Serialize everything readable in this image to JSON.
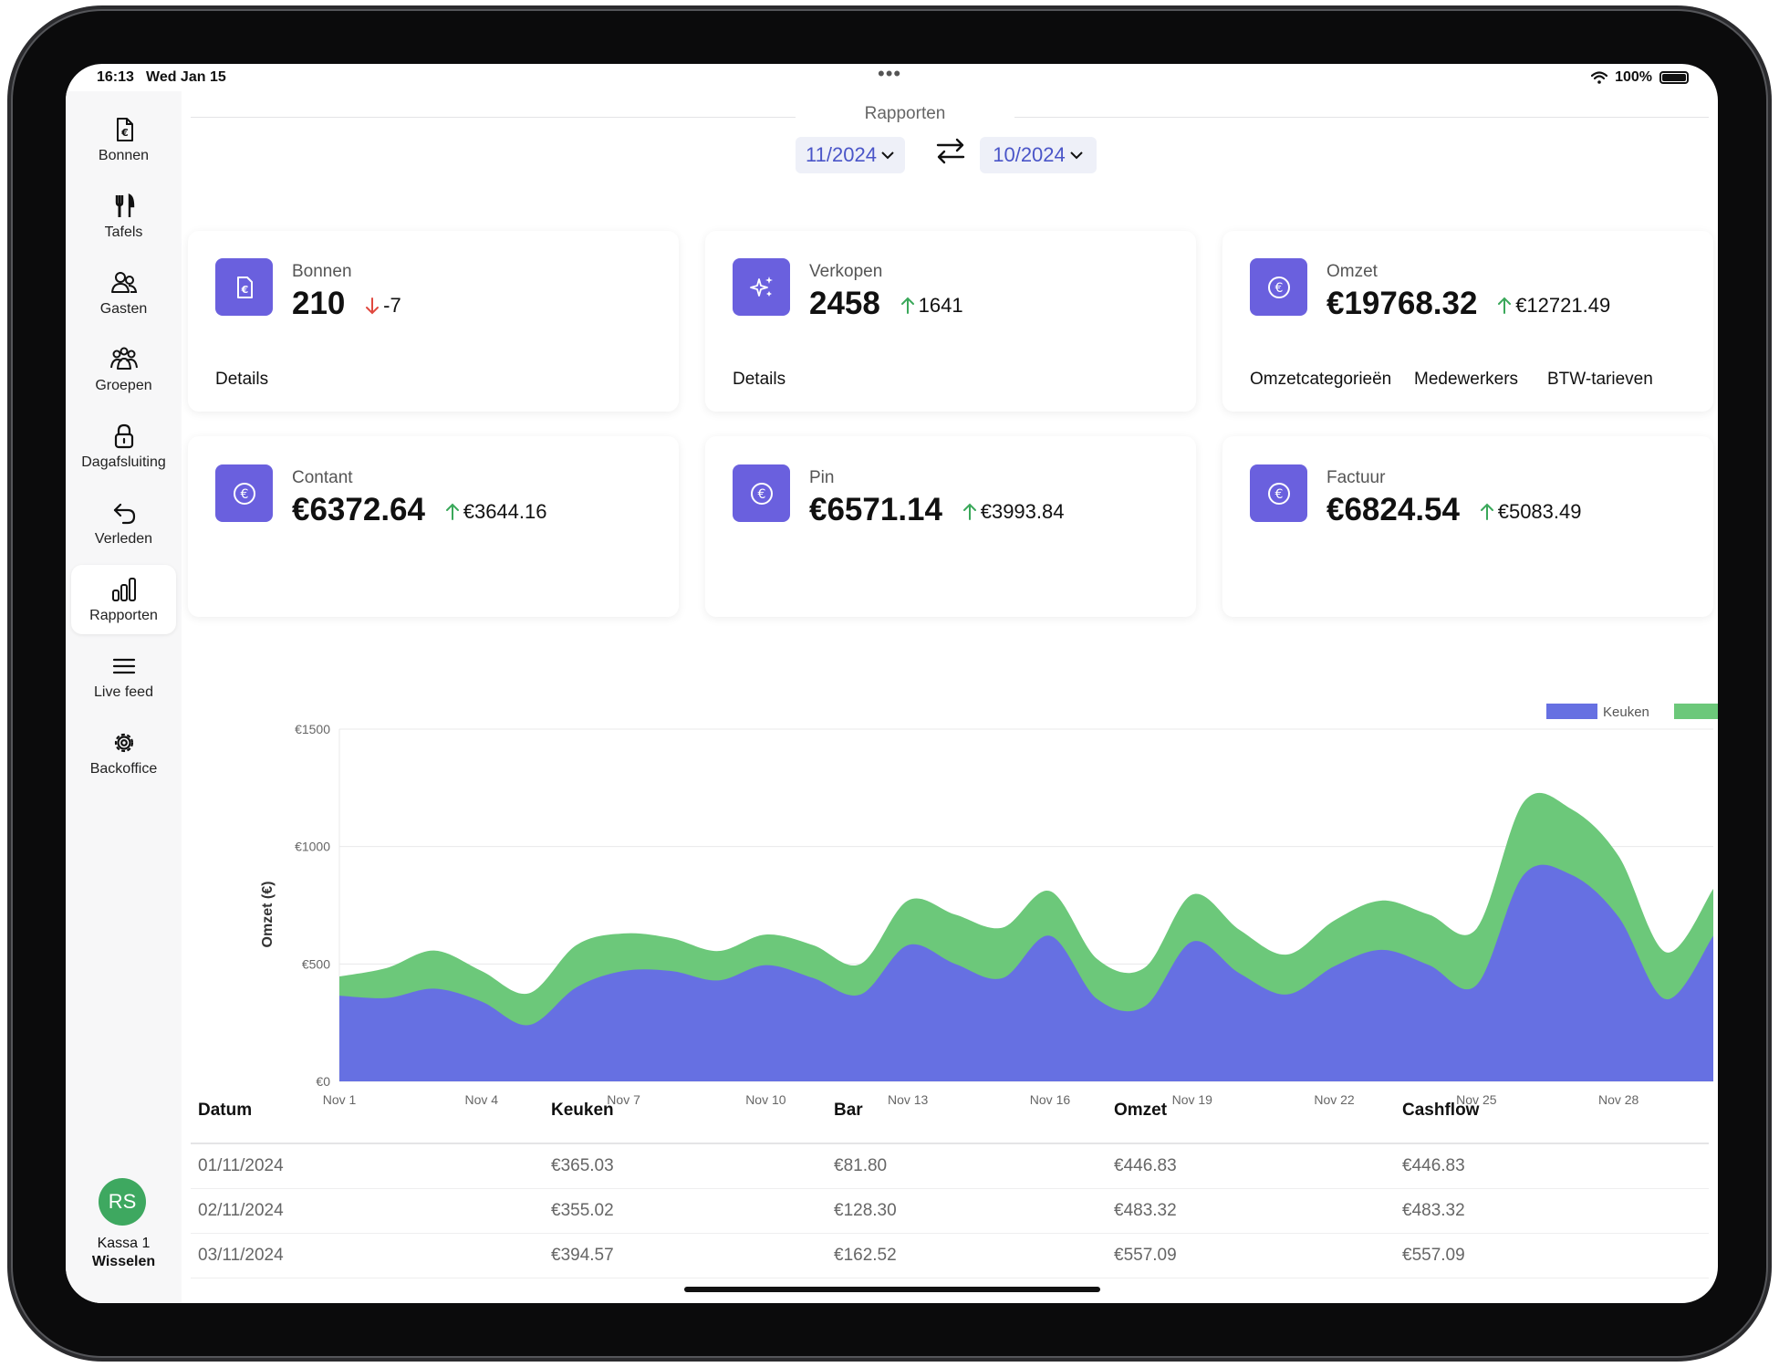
{
  "status_bar": {
    "time": "16:13",
    "date": "Wed Jan 15",
    "battery": "100%"
  },
  "sidebar": {
    "items": [
      {
        "label": "Bonnen",
        "icon": "receipt-euro-icon"
      },
      {
        "label": "Tafels",
        "icon": "fork-knife-icon"
      },
      {
        "label": "Gasten",
        "icon": "two-users-icon"
      },
      {
        "label": "Groepen",
        "icon": "group-users-icon"
      },
      {
        "label": "Dagafsluiting",
        "icon": "lock-icon"
      },
      {
        "label": "Verleden",
        "icon": "undo-arrow-icon"
      },
      {
        "label": "Rapporten",
        "icon": "bar-chart-icon",
        "active": true
      },
      {
        "label": "Live feed",
        "icon": "menu-lines-icon"
      },
      {
        "label": "Backoffice",
        "icon": "gear-icon"
      }
    ],
    "user": {
      "initials": "RS",
      "register": "Kassa 1",
      "switch_label": "Wisselen"
    }
  },
  "header": {
    "title": "Rapporten",
    "period_current": "11/2024",
    "period_compare": "10/2024"
  },
  "cards": {
    "bonnen": {
      "label": "Bonnen",
      "value": "210",
      "delta": "-7",
      "direction": "down",
      "link": "Details",
      "icon": "receipt-euro-icon"
    },
    "verkopen": {
      "label": "Verkopen",
      "value": "2458",
      "delta": "1641",
      "direction": "up",
      "link": "Details",
      "icon": "sparkles-icon"
    },
    "omzet": {
      "label": "Omzet",
      "value": "€19768.32",
      "delta": "€12721.49",
      "direction": "up",
      "links": [
        "Omzetcategorieën",
        "Medewerkers",
        "BTW-tarieven"
      ],
      "icon": "euro-coin-icon"
    },
    "contant": {
      "label": "Contant",
      "value": "€6372.64",
      "delta": "€3644.16",
      "direction": "up",
      "icon": "euro-coin-icon"
    },
    "pin": {
      "label": "Pin",
      "value": "€6571.14",
      "delta": "€3993.84",
      "direction": "up",
      "icon": "euro-coin-icon"
    },
    "factuur": {
      "label": "Factuur",
      "value": "€6824.54",
      "delta": "€5083.49",
      "direction": "up",
      "icon": "euro-coin-icon"
    }
  },
  "colors": {
    "accent": "#6a60de",
    "keuken": "#6670e2",
    "bar": "#6cc87a",
    "up": "#3aa85a",
    "down": "#e0483f"
  },
  "chart_data": {
    "type": "area",
    "stacked": true,
    "ylabel": "Omzet (€)",
    "y_ticks": [
      "€0",
      "€500",
      "€1000",
      "€1500"
    ],
    "ylim": [
      0,
      1500
    ],
    "x_ticks": [
      "Nov 1",
      "Nov 4",
      "Nov 7",
      "Nov 10",
      "Nov 13",
      "Nov 16",
      "Nov 19",
      "Nov 22",
      "Nov 25",
      "Nov 28"
    ],
    "legend_position": "top-right",
    "x": [
      "Nov 1",
      "Nov 2",
      "Nov 3",
      "Nov 4",
      "Nov 5",
      "Nov 6",
      "Nov 7",
      "Nov 8",
      "Nov 9",
      "Nov 10",
      "Nov 11",
      "Nov 12",
      "Nov 13",
      "Nov 14",
      "Nov 15",
      "Nov 16",
      "Nov 17",
      "Nov 18",
      "Nov 19",
      "Nov 20",
      "Nov 21",
      "Nov 22",
      "Nov 23",
      "Nov 24",
      "Nov 25",
      "Nov 26",
      "Nov 27",
      "Nov 28",
      "Nov 29",
      "Nov 30"
    ],
    "series": [
      {
        "name": "Keuken",
        "values": [
          365,
          355,
          395,
          340,
          240,
          400,
          470,
          470,
          430,
          495,
          440,
          370,
          580,
          500,
          440,
          620,
          350,
          320,
          595,
          460,
          370,
          490,
          560,
          495,
          410,
          880,
          880,
          700,
          350,
          620
        ]
      },
      {
        "name": "Bar",
        "values": [
          82,
          128,
          162,
          130,
          135,
          180,
          160,
          140,
          125,
          130,
          140,
          130,
          190,
          210,
          215,
          190,
          170,
          165,
          200,
          185,
          170,
          195,
          210,
          215,
          240,
          310,
          280,
          260,
          200,
          200
        ]
      }
    ]
  },
  "table": {
    "columns": [
      "Datum",
      "Keuken",
      "Bar",
      "Omzet",
      "Cashflow"
    ],
    "rows": [
      [
        "01/11/2024",
        "€365.03",
        "€81.80",
        "€446.83",
        "€446.83"
      ],
      [
        "02/11/2024",
        "€355.02",
        "€128.30",
        "€483.32",
        "€483.32"
      ],
      [
        "03/11/2024",
        "€394.57",
        "€162.52",
        "€557.09",
        "€557.09"
      ]
    ]
  }
}
